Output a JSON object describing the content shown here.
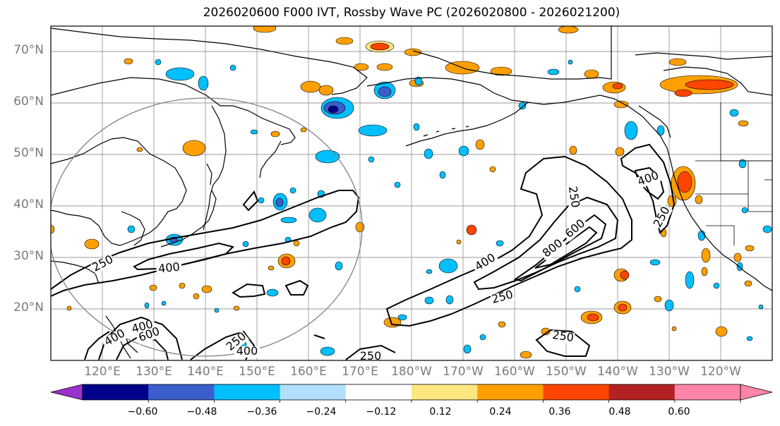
{
  "title": "2026020600 F000 IVT, Rossby Wave PC (2026020800 - 2026021200)",
  "latitude_labels": [
    "70°N",
    "60°N",
    "50°N",
    "40°N",
    "30°N",
    "20°N"
  ],
  "longitude_labels": [
    "120°E",
    "130°E",
    "140°E",
    "150°E",
    "160°E",
    "170°E",
    "180°W",
    "170°W",
    "160°W",
    "150°W",
    "140°W",
    "130°W",
    "120°W"
  ],
  "ivt_contour_labels": [
    "250",
    "400",
    "250",
    "400",
    "800",
    "600",
    "400",
    "250",
    "250",
    "400",
    "250",
    "400",
    "600",
    "250",
    "400",
    "250"
  ],
  "colorbar": {
    "tick_labels": [
      "−0.60",
      "−0.48",
      "−0.36",
      "−0.24",
      "−0.12",
      "0.12",
      "0.24",
      "0.36",
      "0.48",
      "0.60"
    ],
    "colors": [
      "#9932cc",
      "#00008b",
      "#3a5fcd",
      "#00bfff",
      "#b2dfff",
      "#ffffff",
      "#ffe680",
      "#ffa000",
      "#ff4500",
      "#b22222",
      "#ff85a8",
      "#ff85a8"
    ]
  }
}
